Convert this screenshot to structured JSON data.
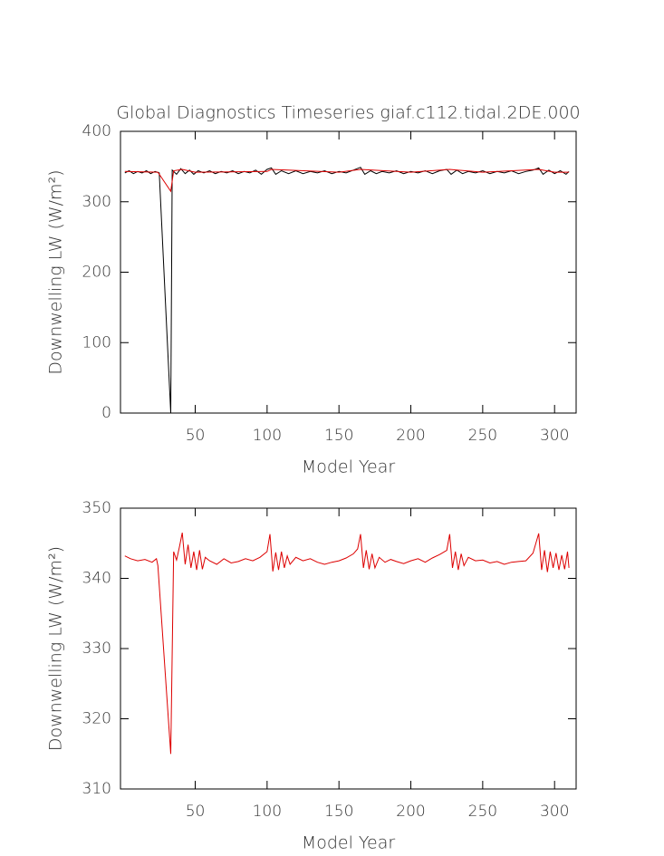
{
  "chart_data": [
    {
      "type": "line",
      "title": "Global Diagnostics Timeseries giaf.c112.tidal.2DE.000",
      "xlabel": "Model Year",
      "ylabel": "Downwelling LW (W/m²)",
      "xlim": [
        -2,
        315
      ],
      "xticks": [
        50,
        100,
        150,
        200,
        250,
        300
      ],
      "ylim": [
        0,
        400
      ],
      "yticks": [
        0,
        100,
        200,
        300,
        400
      ],
      "series": [
        {
          "color": "#000000",
          "x": [
            1,
            4,
            7,
            10,
            13,
            16,
            19,
            22,
            25,
            33,
            34,
            37,
            40,
            43,
            46,
            49,
            52,
            56,
            60,
            64,
            68,
            72,
            76,
            80,
            84,
            88,
            92,
            96,
            100,
            103,
            106,
            110,
            115,
            120,
            125,
            130,
            135,
            140,
            145,
            150,
            155,
            160,
            165,
            168,
            172,
            176,
            180,
            185,
            190,
            195,
            200,
            205,
            210,
            215,
            220,
            225,
            228,
            232,
            236,
            240,
            245,
            250,
            255,
            260,
            265,
            270,
            275,
            280,
            285,
            289,
            292,
            296,
            300,
            304,
            308,
            310
          ],
          "values": [
            341,
            344,
            340,
            343,
            341,
            344,
            340,
            343,
            341,
            0,
            345,
            339,
            347,
            340,
            345,
            339,
            344,
            341,
            344,
            340,
            343,
            341,
            344,
            340,
            343,
            341,
            345,
            339,
            346,
            348,
            339,
            344,
            340,
            344,
            340,
            343,
            341,
            344,
            340,
            343,
            341,
            345,
            349,
            339,
            344,
            340,
            343,
            341,
            344,
            340,
            343,
            341,
            344,
            340,
            344,
            346,
            339,
            345,
            340,
            343,
            341,
            344,
            340,
            343,
            341,
            344,
            340,
            343,
            345,
            348,
            339,
            345,
            340,
            344,
            339,
            343
          ]
        },
        {
          "color": "#dd0000",
          "x": [
            1,
            24,
            33,
            35,
            41,
            50,
            100,
            103,
            150,
            165,
            200,
            227,
            250,
            289,
            300,
            310
          ],
          "values": [
            343,
            342,
            315,
            344,
            346,
            342,
            343,
            346,
            342,
            346,
            342,
            346,
            342,
            346,
            342,
            342
          ]
        }
      ]
    },
    {
      "type": "line",
      "xlabel": "Model Year",
      "ylabel": "Downwelling LW (W/m²)",
      "xlim": [
        -2,
        315
      ],
      "xticks": [
        50,
        100,
        150,
        200,
        250,
        300
      ],
      "ylim": [
        310,
        350
      ],
      "yticks": [
        310,
        320,
        330,
        340,
        350
      ],
      "series": [
        {
          "color": "#dd0000",
          "x": [
            1,
            5,
            10,
            15,
            20,
            23,
            24,
            33,
            35,
            37,
            39,
            41,
            43,
            45,
            47,
            49,
            51,
            53,
            55,
            57,
            60,
            65,
            70,
            75,
            80,
            85,
            90,
            95,
            100,
            102,
            104,
            106,
            108,
            110,
            112,
            114,
            116,
            120,
            125,
            130,
            135,
            140,
            145,
            150,
            155,
            160,
            163,
            165,
            167,
            169,
            171,
            173,
            175,
            178,
            182,
            186,
            190,
            195,
            200,
            205,
            210,
            215,
            220,
            225,
            227,
            229,
            231,
            233,
            235,
            237,
            240,
            245,
            250,
            255,
            260,
            265,
            270,
            275,
            280,
            285,
            289,
            291,
            293,
            295,
            297,
            299,
            301,
            303,
            305,
            307,
            309,
            310
          ],
          "values": [
            343.2,
            342.8,
            342.5,
            342.7,
            342.3,
            342.8,
            341.8,
            315,
            343.8,
            342.6,
            344.5,
            346.5,
            342,
            344.8,
            341.5,
            343.8,
            341.2,
            344,
            341.3,
            343,
            342.5,
            342,
            342.8,
            342.2,
            342.4,
            342.8,
            342.5,
            343,
            343.8,
            346.3,
            341,
            343.7,
            341.2,
            343.8,
            341.5,
            343.2,
            342,
            343,
            342.5,
            342.8,
            342.3,
            342,
            342.3,
            342.5,
            342.9,
            343.5,
            344.2,
            346.3,
            341.5,
            344,
            341.3,
            343.5,
            341.5,
            343,
            342.3,
            342.7,
            342.4,
            342.1,
            342.5,
            342.8,
            342.3,
            342.9,
            343.4,
            344,
            346.3,
            341.5,
            343.8,
            341.2,
            343.5,
            341.8,
            343,
            342.5,
            342.6,
            342.2,
            342.4,
            342,
            342.3,
            342.4,
            342.5,
            343.6,
            346.4,
            341.2,
            344,
            340.9,
            343.8,
            341.5,
            343.6,
            341.2,
            343.3,
            341.3,
            343.8,
            341.5
          ]
        }
      ]
    }
  ]
}
